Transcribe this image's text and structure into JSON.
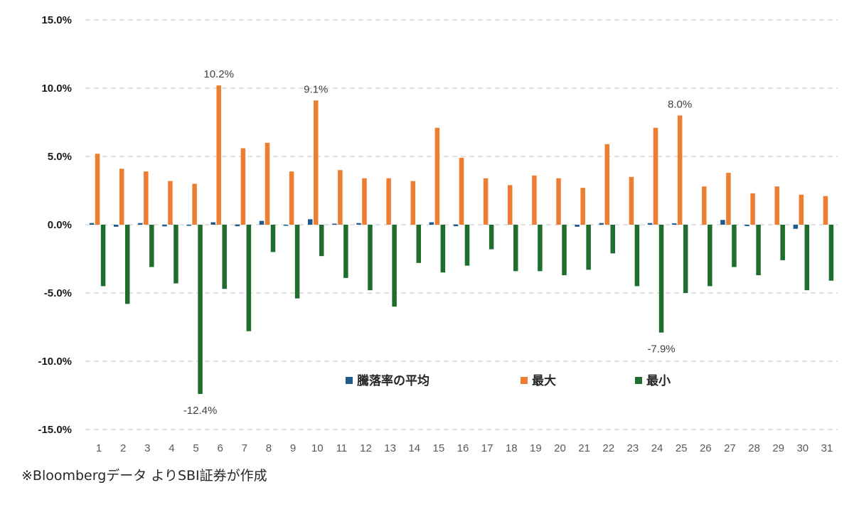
{
  "chart_data": {
    "type": "bar",
    "categories": [
      "1",
      "2",
      "3",
      "4",
      "5",
      "6",
      "7",
      "8",
      "9",
      "10",
      "11",
      "12",
      "13",
      "14",
      "15",
      "16",
      "17",
      "18",
      "19",
      "20",
      "21",
      "22",
      "23",
      "24",
      "25",
      "26",
      "27",
      "28",
      "29",
      "30",
      "31"
    ],
    "series": [
      {
        "name": "騰落率の平均",
        "color": "#1f5c8b",
        "values": [
          0.12,
          -0.15,
          0.12,
          -0.12,
          -0.08,
          0.18,
          0.02,
          0.28,
          -0.08,
          0.4,
          0.08,
          0.12,
          0.0,
          0.0,
          0.18,
          0.02,
          0.0,
          0.0,
          0.0,
          0.0,
          -0.15,
          0.12,
          0.0,
          0.12,
          0.1,
          0.0,
          0.35,
          -0.1,
          0.0,
          -0.3,
          0.0
        ]
      },
      {
        "name": "最大",
        "color": "#ed7d31",
        "values": [
          5.2,
          4.1,
          3.9,
          3.2,
          3.0,
          10.2,
          5.6,
          6.0,
          3.9,
          9.1,
          4.0,
          3.4,
          3.4,
          3.2,
          7.1,
          4.9,
          3.4,
          2.9,
          3.6,
          3.4,
          2.7,
          5.9,
          3.5,
          7.1,
          8.0,
          2.8,
          3.8,
          2.3,
          2.8,
          2.2,
          2.1
        ]
      },
      {
        "name": "最小",
        "color": "#1e6f2e",
        "values": [
          -4.5,
          -5.8,
          -3.1,
          -4.3,
          -12.4,
          -4.7,
          -7.8,
          -2.0,
          -5.4,
          -2.3,
          -3.9,
          -4.8,
          -6.0,
          -2.8,
          -3.5,
          -3.0,
          -1.8,
          -3.4,
          -3.4,
          -3.7,
          -3.3,
          -2.1,
          -4.5,
          -7.9,
          -5.0,
          -4.5,
          -3.1,
          -3.7,
          -2.6,
          -4.8,
          -4.1
        ]
      }
    ],
    "data_labels": [
      {
        "series": 1,
        "index": 5,
        "text": "10.2%"
      },
      {
        "series": 1,
        "index": 9,
        "text": "9.1%"
      },
      {
        "series": 1,
        "index": 24,
        "text": "8.0%"
      },
      {
        "series": 2,
        "index": 4,
        "text": "-12.4%"
      },
      {
        "series": 2,
        "index": 23,
        "text": "-7.9%"
      }
    ],
    "yticks": [
      "15.0%",
      "10.0%",
      "5.0%",
      "0.0%",
      "-5.0%",
      "-10.0%",
      "-15.0%"
    ],
    "ylim": [
      -15,
      15
    ],
    "grid": true,
    "legend": "bottom-center"
  },
  "footer": {
    "source": "※Bloombergデータ よりSBI証券が作成"
  }
}
